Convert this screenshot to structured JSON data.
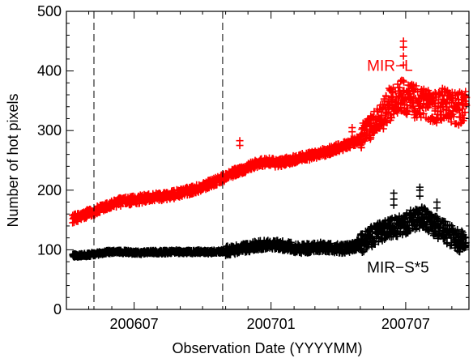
{
  "chart_data": {
    "type": "scatter",
    "title": "",
    "xlabel": "Observation Date (YYYYMM)",
    "ylabel": "Number of hot pixels",
    "ylim": [
      0,
      500
    ],
    "xlim": [
      "2006-04-01",
      "2007-09-24"
    ],
    "grid": false,
    "marker": "+",
    "xticks": [
      {
        "date": "2006-07-01",
        "label": "200607"
      },
      {
        "date": "2007-01-01",
        "label": "200701"
      },
      {
        "date": "2007-07-01",
        "label": "200707"
      }
    ],
    "yticks": [
      0,
      100,
      200,
      300,
      400,
      500
    ],
    "vertical_lines": [
      {
        "date": "2006-05-08",
        "style": "dashed"
      },
      {
        "date": "2006-10-28",
        "style": "dashed"
      }
    ],
    "series": [
      {
        "name": "MIR−L",
        "color": "#ff0000",
        "label_anchor": {
          "date": "2007-05-10",
          "value": 400
        },
        "x": [
          "2006-04-10",
          "2006-04-25",
          "2006-05-10",
          "2006-05-25",
          "2006-06-10",
          "2006-06-25",
          "2006-07-10",
          "2006-07-25",
          "2006-08-10",
          "2006-08-25",
          "2006-09-10",
          "2006-09-25",
          "2006-10-10",
          "2006-10-25",
          "2006-11-10",
          "2006-11-25",
          "2006-12-10",
          "2006-12-25",
          "2007-01-10",
          "2007-01-25",
          "2007-02-10",
          "2007-02-25",
          "2007-03-10",
          "2007-03-25",
          "2007-04-10",
          "2007-04-25",
          "2007-05-10",
          "2007-05-25",
          "2007-06-10",
          "2007-06-25",
          "2007-07-10",
          "2007-07-25",
          "2007-08-10",
          "2007-08-25",
          "2007-09-10",
          "2007-09-20"
        ],
        "values": [
          152,
          158,
          165,
          172,
          180,
          182,
          185,
          188,
          190,
          193,
          198,
          203,
          210,
          218,
          228,
          235,
          243,
          248,
          245,
          250,
          255,
          258,
          262,
          268,
          275,
          282,
          300,
          320,
          345,
          360,
          350,
          345,
          340,
          345,
          335,
          345
        ]
      },
      {
        "name": "MIR−S*5",
        "color": "#000000",
        "label_anchor": {
          "date": "2007-05-10",
          "value": 62
        },
        "x": [
          "2006-04-10",
          "2006-04-25",
          "2006-05-10",
          "2006-05-25",
          "2006-06-10",
          "2006-06-25",
          "2006-07-10",
          "2006-07-25",
          "2006-08-10",
          "2006-08-25",
          "2006-09-10",
          "2006-09-25",
          "2006-10-10",
          "2006-10-25",
          "2006-11-10",
          "2006-11-25",
          "2006-12-10",
          "2006-12-25",
          "2007-01-10",
          "2007-01-25",
          "2007-02-10",
          "2007-02-25",
          "2007-03-10",
          "2007-03-25",
          "2007-04-10",
          "2007-04-25",
          "2007-05-10",
          "2007-05-25",
          "2007-06-10",
          "2007-06-25",
          "2007-07-10",
          "2007-07-25",
          "2007-08-10",
          "2007-08-25",
          "2007-09-10",
          "2007-09-20"
        ],
        "values": [
          90,
          91,
          93,
          96,
          97,
          96,
          95,
          96,
          96,
          97,
          96,
          97,
          96,
          97,
          99,
          102,
          106,
          109,
          108,
          105,
          102,
          103,
          105,
          103,
          101,
          107,
          118,
          128,
          135,
          140,
          150,
          155,
          140,
          128,
          115,
          112
        ]
      }
    ]
  }
}
